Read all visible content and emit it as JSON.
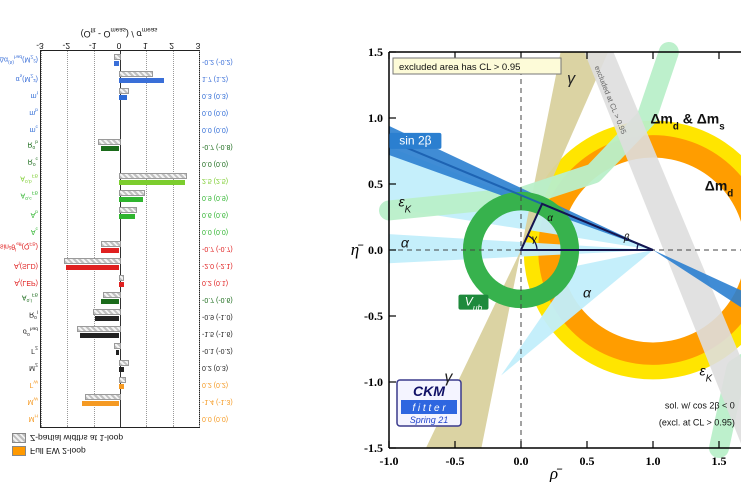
{
  "page": {
    "background": "#ffffff"
  },
  "left_chart": {
    "legend": [
      {
        "label": "Full EW 2-loop",
        "style": "solid",
        "color": "#ff9900"
      },
      {
        "label": "Z-partial widths at 1-loop",
        "style": "hatch",
        "color": "#cccccc"
      }
    ],
    "title_segments": [
      [
        "(O",
        "n"
      ],
      [
        "fit",
        "sub"
      ],
      [
        " - O",
        "n"
      ],
      [
        "meas",
        "sub"
      ],
      [
        ") / σ",
        "n"
      ],
      [
        "meas",
        "sub"
      ]
    ],
    "row_label_segments": [
      [
        [
          "M",
          "n"
        ],
        [
          "H",
          "sub"
        ]
      ],
      [
        [
          "M",
          "n"
        ],
        [
          "W",
          "sub"
        ]
      ],
      [
        [
          "Γ",
          "n"
        ],
        [
          "W",
          "sub"
        ]
      ],
      [
        [
          "M",
          "n"
        ],
        [
          "Z",
          "sub"
        ]
      ],
      [
        [
          "Γ",
          "n"
        ],
        [
          "Z",
          "sub"
        ]
      ],
      [
        [
          "σ",
          "n"
        ],
        [
          "0",
          "sup"
        ],
        [
          "had",
          "sub"
        ]
      ],
      [
        [
          "R",
          "n"
        ],
        [
          "0",
          "sup"
        ],
        [
          "l",
          "sub"
        ]
      ],
      [
        [
          "A",
          "n"
        ],
        [
          "0,l",
          "sup"
        ],
        [
          "FB",
          "sub"
        ]
      ],
      [
        [
          "A",
          "n"
        ],
        [
          "l",
          "sub"
        ],
        [
          "(LEP)",
          "n"
        ]
      ],
      [
        [
          "A",
          "n"
        ],
        [
          "l",
          "sub"
        ],
        [
          "(SLD)",
          "n"
        ]
      ],
      [
        [
          "sin²θ",
          "n"
        ],
        [
          "l",
          "sup"
        ],
        [
          "eff",
          "sub"
        ],
        [
          "(Q",
          "n"
        ],
        [
          "FB",
          "sub"
        ],
        [
          ")",
          "n"
        ]
      ],
      [
        [
          "A",
          "n"
        ],
        [
          "c",
          "sub"
        ]
      ],
      [
        [
          "A",
          "n"
        ],
        [
          "b",
          "sub"
        ]
      ],
      [
        [
          "A",
          "n"
        ],
        [
          "0,c",
          "sup"
        ],
        [
          "FB",
          "sub"
        ]
      ],
      [
        [
          "A",
          "n"
        ],
        [
          "0,b",
          "sup"
        ],
        [
          "FB",
          "sub"
        ]
      ],
      [
        [
          "R",
          "n"
        ],
        [
          "0",
          "sup"
        ],
        [
          "c",
          "sub"
        ]
      ],
      [
        [
          "R",
          "n"
        ],
        [
          "0",
          "sup"
        ],
        [
          "b",
          "sub"
        ]
      ],
      [
        [
          "m",
          "n"
        ],
        [
          "c",
          "sub"
        ]
      ],
      [
        [
          "m",
          "n"
        ],
        [
          "b",
          "sub"
        ]
      ],
      [
        [
          "m",
          "n"
        ],
        [
          "t",
          "sub"
        ]
      ],
      [
        [
          "α",
          "n"
        ],
        [
          "s",
          "sub"
        ],
        [
          "(M",
          "n"
        ],
        [
          "Z",
          "sub"
        ],
        [
          "²)",
          "n"
        ]
      ],
      [
        [
          "Δα",
          "n"
        ],
        [
          "(5)",
          "sup"
        ],
        [
          "had",
          "sub"
        ],
        [
          "(M",
          "n"
        ],
        [
          "Z",
          "sub"
        ],
        [
          "²)",
          "n"
        ]
      ]
    ],
    "row_colors": [
      "#f59a23",
      "#f59a23",
      "#f59a23",
      "#222222",
      "#222222",
      "#222222",
      "#222222",
      "#1b6b1b",
      "#e02020",
      "#e02020",
      "#e02020",
      "#2fb52f",
      "#2fb52f",
      "#2fb52f",
      "#7ccd2e",
      "#1b6b1b",
      "#1b6b1b",
      "#2e6bd6",
      "#2e6bd6",
      "#2e6bd6",
      "#3a6fd8",
      "#3a6fd8"
    ],
    "value_labels": [
      "0.0 (0.0)",
      "-1.4 (-1.3)",
      "0.2 (0.2)",
      "0.2 (0.3)",
      "-0.1 (-0.2)",
      "-1.5 (-1.6)",
      "-0.9 (-1.0)",
      "-0.7 (-0.6)",
      "0.2 (0.1)",
      "-2.0 (-2.1)",
      "-0.7 (-0.7)",
      "0.0 (0.0)",
      "0.6 (0.6)",
      "0.9 (0.9)",
      "2.5 (2.5)",
      "0.0 (0.0)",
      "-0.7 (-0.8)",
      "0.0 (0.0)",
      "0.0 (0.0)",
      "0.3 (0.3)",
      "1.7 (1.2)",
      "-0.2 (-0.2)"
    ]
  },
  "chart_data": [
    {
      "type": "bar",
      "orientation": "horizontal",
      "title": "(O_fit - O_meas) / sigma_meas",
      "xlim": [
        -3,
        3
      ],
      "x_ticks": [
        -3,
        -2,
        -1,
        0,
        1,
        2,
        3
      ],
      "categories": [
        "M_H",
        "M_W",
        "Γ_W",
        "M_Z",
        "Γ_Z",
        "σ_had^0",
        "R_l^0",
        "A_FB^{0,l}",
        "A_l(LEP)",
        "A_l(SLD)",
        "sin²θ_eff^l(Q_FB)",
        "A_c",
        "A_b",
        "A_FB^{0,c}",
        "A_FB^{0,b}",
        "R_c^0",
        "R_b^0",
        "m_c",
        "m_b",
        "m_t",
        "α_s(M_Z²)",
        "Δα_had^(5)(M_Z²)"
      ],
      "series": [
        {
          "name": "Full EW 2-loop",
          "values": [
            0.0,
            -1.4,
            0.2,
            0.2,
            -0.1,
            -1.5,
            -0.9,
            -0.7,
            0.2,
            -2.0,
            -0.7,
            0.0,
            0.6,
            0.9,
            2.5,
            0.0,
            -0.7,
            0.0,
            0.0,
            0.3,
            1.7,
            -0.2
          ]
        },
        {
          "name": "Z-partial widths at 1-loop",
          "values": [
            0.0,
            -1.3,
            0.2,
            0.3,
            -0.2,
            -1.6,
            -1.0,
            -0.6,
            0.1,
            -2.1,
            -0.7,
            0.0,
            0.6,
            0.9,
            2.5,
            0.0,
            -0.8,
            0.0,
            0.0,
            0.3,
            1.2,
            -0.2
          ]
        }
      ],
      "note": "panel appears vertically mirrored in the screenshot"
    },
    {
      "type": "area",
      "title": "CKM unitarity-triangle global fit",
      "xlabel": "ρ̄",
      "ylabel": "η̄",
      "xlim": [
        -1.0,
        2.0
      ],
      "ylim": [
        -1.5,
        1.5
      ],
      "x_ticks": [
        -1.0,
        -0.5,
        0.0,
        0.5,
        1.0,
        1.5
      ],
      "x_tick_labels": [
        "-1.0",
        "-0.5",
        "0.0",
        "0.5",
        "1.0",
        "1.5"
      ],
      "y_ticks": [
        1.5,
        1.0,
        0.5,
        0.0,
        -0.5,
        -1.0,
        -1.5
      ],
      "y_tick_labels": [
        "1.5",
        "1.0",
        "0.5",
        "0.0",
        "-0.5",
        "-1.0",
        "-1.5"
      ],
      "legend_note": "excluded area has CL > 0.95",
      "triangle_vertices": [
        [
          0,
          0
        ],
        [
          1,
          0
        ],
        [
          0.16,
          0.35
        ]
      ],
      "constraints": [
        {
          "name": "dmd",
          "shape": "annulus",
          "center": [
            1,
            0
          ],
          "r_in": 0.79,
          "r_out": 0.98,
          "color": "#ffe500",
          "op": 1
        },
        {
          "name": "dmd-dms",
          "shape": "annulus",
          "center": [
            1,
            0
          ],
          "r_in": 0.7,
          "r_out": 0.87,
          "color": "#ff9d00",
          "op": 1
        },
        {
          "name": "alpha",
          "shape": "polys",
          "color": "#c2eefb",
          "op": 0.95,
          "polys": [
            [
              [
                1,
                0
              ],
              [
                -1,
                0.32
              ],
              [
                -1,
                0.78
              ]
            ],
            [
              [
                1,
                0
              ],
              [
                -1,
                -0.1
              ],
              [
                -1,
                0.12
              ]
            ],
            [
              [
                1,
                0
              ],
              [
                -0.15,
                -0.95
              ],
              [
                0.42,
                -0.12
              ]
            ]
          ]
        },
        {
          "name": "gamma",
          "shape": "polys",
          "color": "#d9d19e",
          "op": 0.95,
          "polys": [
            [
              [
                0,
                0
              ],
              [
                0.3,
                1.5
              ],
              [
                0.66,
                1.5
              ]
            ],
            [
              [
                0,
                0
              ],
              [
                -0.72,
                -1.5
              ],
              [
                -0.3,
                -1.5
              ]
            ]
          ]
        },
        {
          "name": "epsilon-K",
          "shape": "bands",
          "color": "#b9efc9",
          "op": 0.95,
          "width": 20,
          "paths": [
            [
              [
                -1,
                0.3
              ],
              [
                0,
                0.4
              ],
              [
                0.55,
                0.58
              ],
              [
                0.95,
                1.0
              ],
              [
                1.12,
                1.5
              ]
            ],
            [
              [
                1.5,
                -1.5
              ],
              [
                1.63,
                -0.9
              ],
              [
                2.1,
                -0.6
              ]
            ]
          ]
        },
        {
          "name": "excluded-band",
          "shape": "polys",
          "color": "#dedede",
          "op": 0.9,
          "polys": [
            [
              [
                0.48,
                1.5
              ],
              [
                0.7,
                1.5
              ],
              [
                1.95,
                -1.5
              ],
              [
                1.68,
                -1.5
              ]
            ]
          ]
        },
        {
          "name": "sin2beta",
          "shape": "polys",
          "color": "#2b7fd0",
          "op": 0.9,
          "polys": [
            [
              [
                1,
                0
              ],
              [
                -1,
                0.72
              ],
              [
                -1,
                0.94
              ]
            ],
            [
              [
                1,
                0
              ],
              [
                2.2,
                -0.55
              ],
              [
                2.2,
                -0.78
              ]
            ]
          ]
        },
        {
          "name": "Vub",
          "shape": "annulus",
          "center": [
            0,
            0
          ],
          "r_in": 0.3,
          "r_out": 0.44,
          "color": "#37b24d",
          "op": 1
        }
      ],
      "texts": [
        {
          "name": "gamma-top-label",
          "segs": [
            [
              "γ",
              "n"
            ]
          ],
          "x": 0.38,
          "y": 1.26,
          "s": 16,
          "i": 1,
          "color": "#222222"
        },
        {
          "name": "sin2b-label",
          "segs": [
            [
              "sin 2β",
              "n"
            ]
          ],
          "x": -0.8,
          "y": 0.8,
          "s": 12,
          "color": "#ffffff",
          "bg": "#2b7fd0",
          "bw": 52,
          "bh": 16
        },
        {
          "name": "dmd-dms-label",
          "segs": [
            [
              "Δm",
              "n"
            ],
            [
              "d",
              "sub"
            ],
            [
              " & Δm",
              "n"
            ],
            [
              "s",
              "sub"
            ]
          ],
          "x": 0.98,
          "y": 0.96,
          "s": 14,
          "b": 1,
          "anchor": "start",
          "color": "#111111"
        },
        {
          "name": "dmd-label",
          "segs": [
            [
              "Δm",
              "n"
            ],
            [
              "d",
              "sub"
            ]
          ],
          "x": 1.5,
          "y": 0.45,
          "s": 14,
          "b": 1,
          "color": "#111111"
        },
        {
          "name": "epsK-left-label",
          "segs": [
            [
              "ε",
              "n"
            ],
            [
              "K",
              "sub"
            ]
          ],
          "x": -0.88,
          "y": 0.33,
          "s": 14,
          "i": 1,
          "color": "#111111"
        },
        {
          "name": "alpha-left-label",
          "segs": [
            [
              "α",
              "n"
            ]
          ],
          "x": -0.88,
          "y": 0.02,
          "s": 14,
          "i": 1,
          "color": "#111111"
        },
        {
          "name": "vub-label",
          "segs": [
            [
              "V",
              "n"
            ],
            [
              "ub",
              "sub"
            ]
          ],
          "x": -0.36,
          "y": -0.42,
          "s": 12,
          "i": 1,
          "color": "#ffffff",
          "bg": "#1e8a3c",
          "bw": 30,
          "bh": 15
        },
        {
          "name": "alpha-lower-label",
          "segs": [
            [
              "α",
              "n"
            ]
          ],
          "x": 0.5,
          "y": -0.36,
          "s": 14,
          "i": 1,
          "color": "#111111"
        },
        {
          "name": "epsK-right-label",
          "segs": [
            [
              "ε",
              "n"
            ],
            [
              "K",
              "sub"
            ]
          ],
          "x": 1.4,
          "y": -0.95,
          "s": 14,
          "i": 1,
          "color": "#111111"
        },
        {
          "name": "gamma-bottom-label",
          "segs": [
            [
              "γ",
              "n"
            ]
          ],
          "x": -0.55,
          "y": -1.0,
          "s": 16,
          "i": 1,
          "color": "#222222"
        },
        {
          "name": "tri-alpha",
          "segs": [
            [
              "α",
              "n"
            ]
          ],
          "x": 0.22,
          "y": 0.22,
          "s": 10,
          "i": 1,
          "color": "#111111"
        },
        {
          "name": "tri-beta",
          "segs": [
            [
              "β",
              "n"
            ]
          ],
          "x": 0.8,
          "y": 0.07,
          "s": 10,
          "i": 1,
          "color": "#111111"
        },
        {
          "name": "tri-gamma",
          "segs": [
            [
              "γ",
              "n"
            ]
          ],
          "x": 0.1,
          "y": 0.06,
          "s": 10,
          "i": 1,
          "color": "#111111"
        },
        {
          "name": "excluded-rotated",
          "segs": [
            [
              "excluded at CL > 0.95",
              "n"
            ]
          ],
          "x": 0.66,
          "y": 1.13,
          "s": 7.5,
          "rot": 68,
          "color": "#666666"
        },
        {
          "name": "sol-line1",
          "segs": [
            [
              "sol. w/ cos 2β < 0",
              "n"
            ]
          ],
          "x": 1.62,
          "y": -1.2,
          "s": 9,
          "anchor": "end",
          "color": "#111111"
        },
        {
          "name": "sol-line2",
          "segs": [
            [
              "(excl. at CL > 0.95)",
              "n"
            ]
          ],
          "x": 1.62,
          "y": -1.33,
          "s": 9,
          "anchor": "end",
          "color": "#111111"
        }
      ],
      "logo": {
        "line1": "CKM",
        "line2": "f i t t e r",
        "line3": "Spring 21"
      }
    }
  ]
}
